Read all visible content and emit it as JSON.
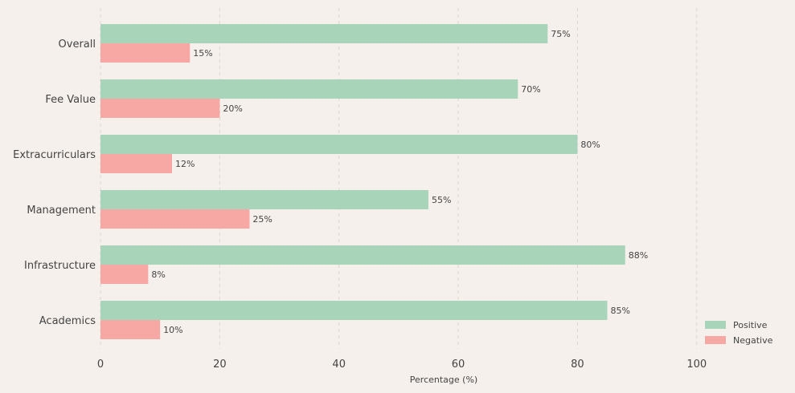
{
  "chart_data": {
    "type": "bar",
    "orientation": "horizontal",
    "categories": [
      "Overall",
      "Fee Value",
      "Extracurriculars",
      "Management",
      "Infrastructure",
      "Academics"
    ],
    "series": [
      {
        "name": "Positive",
        "values": [
          75,
          70,
          80,
          55,
          88,
          85
        ],
        "labels": [
          "75%",
          "70%",
          "80%",
          "55%",
          "88%",
          "85%"
        ],
        "color": "#a8d5ba"
      },
      {
        "name": "Negative",
        "values": [
          15,
          20,
          12,
          25,
          8,
          10
        ],
        "labels": [
          "15%",
          "20%",
          "12%",
          "25%",
          "8%",
          "10%"
        ],
        "color": "#f7a8a4"
      }
    ],
    "xlabel": "Percentage (%)",
    "xlim": [
      0,
      115
    ],
    "xticks": [
      0,
      20,
      40,
      60,
      80,
      100
    ],
    "grid": true,
    "legend_position": "bottom-right"
  },
  "colors": {
    "background": "#f5f0ec",
    "text": "#444444",
    "grid": "#dcd6d0"
  }
}
